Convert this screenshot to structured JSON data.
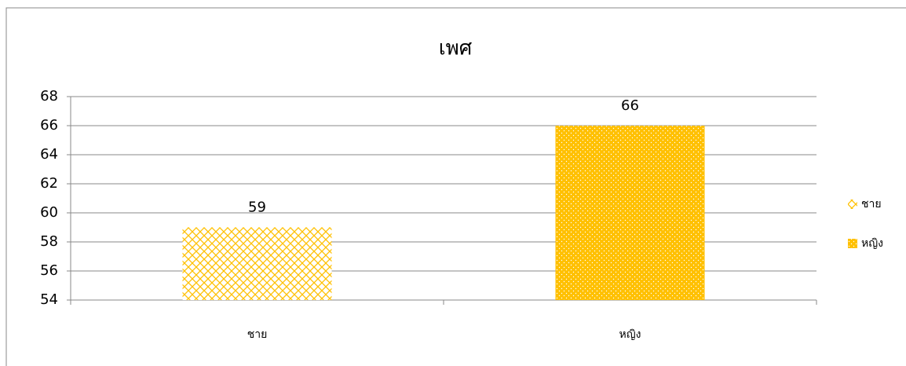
{
  "chart_data": {
    "type": "bar",
    "title": "เพศ",
    "categories": [
      "ชาย",
      "หญิง"
    ],
    "values": [
      59,
      66
    ],
    "colors": [
      "#ffc000",
      "#ffc000"
    ],
    "patterns": [
      "crosshatch",
      "dots"
    ],
    "ylim": [
      54,
      68
    ],
    "yticks": [
      54,
      56,
      58,
      60,
      62,
      64,
      66,
      68
    ],
    "grid": true,
    "legend": "right"
  }
}
